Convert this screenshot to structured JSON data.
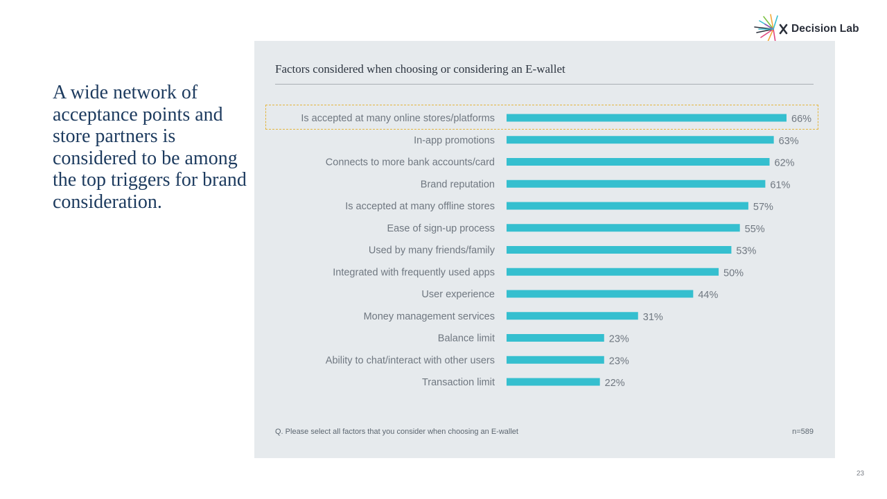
{
  "brand": {
    "name": "Decision Lab",
    "logo_icon": "starburst-lines-icon"
  },
  "headline": "A wide network of acceptance points and store partners is considered to be among the top triggers for brand consideration.",
  "footnote": "Q. Please select all factors that you consider when choosing an E-wallet",
  "sample_size": "n=589",
  "page_number": "23",
  "colors": {
    "bar": "#35bfcf",
    "panel": "#e6eaed",
    "headline": "#1c3a5e",
    "highlight_border": "#e3b53c"
  },
  "chart_data": {
    "type": "bar",
    "orientation": "horizontal",
    "title": "Factors considered when choosing or considering an E-wallet",
    "xlabel": "",
    "ylabel": "",
    "unit": "%",
    "xlim": [
      0,
      66
    ],
    "grid": false,
    "legend": "none",
    "highlighted_category": "Is accepted at many online stores/platforms",
    "categories": [
      "Is accepted at many online stores/platforms",
      "In-app promotions",
      "Connects to more bank accounts/card",
      "Brand reputation",
      "Is accepted at many offline stores",
      "Ease of sign-up process",
      "Used by many friends/family",
      "Integrated with frequently used apps",
      "User experience",
      "Money management services",
      "Balance limit",
      "Ability to chat/interact with other users",
      "Transaction limit"
    ],
    "values": [
      66,
      63,
      62,
      61,
      57,
      55,
      53,
      50,
      44,
      31,
      23,
      23,
      22
    ],
    "value_labels": [
      "66%",
      "63%",
      "62%",
      "61%",
      "57%",
      "55%",
      "53%",
      "50%",
      "44%",
      "31%",
      "23%",
      "23%",
      "22%"
    ]
  }
}
